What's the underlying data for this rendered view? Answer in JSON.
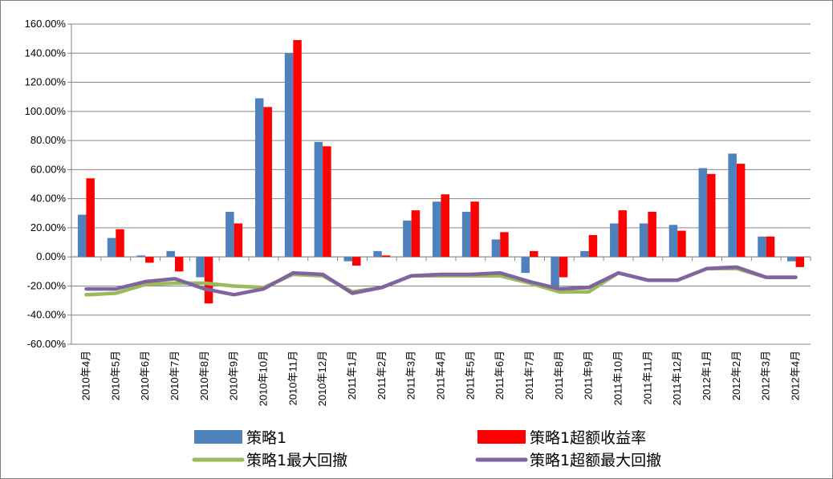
{
  "chart_data": {
    "type": "bar",
    "categories": [
      "2010年4月",
      "2010年5月",
      "2010年6月",
      "2010年7月",
      "2010年8月",
      "2010年9月",
      "2010年10月",
      "2010年11月",
      "2010年12月",
      "2011年1月",
      "2011年2月",
      "2011年3月",
      "2011年4月",
      "2011年5月",
      "2011年6月",
      "2011年7月",
      "2011年8月",
      "2011年9月",
      "2011年10月",
      "2011年11月",
      "2011年12月",
      "2012年1月",
      "2012年2月",
      "2012年3月",
      "2012年4月"
    ],
    "y_ticks": [
      "160.00%",
      "140.00%",
      "120.00%",
      "100.00%",
      "80.00%",
      "60.00%",
      "40.00%",
      "20.00%",
      "0.00%",
      "-20.00%",
      "-40.00%",
      "-60.00%"
    ],
    "ylim": [
      -60,
      160
    ],
    "grid": true,
    "legend_position": "bottom",
    "series": [
      {
        "name": "策略1",
        "kind": "bar",
        "color": "#4f81bd",
        "values": [
          29,
          13,
          1,
          4,
          -14,
          31,
          109,
          140,
          79,
          -3,
          4,
          25,
          38,
          31,
          12,
          -11,
          -21,
          4,
          23,
          23,
          22,
          61,
          71,
          14,
          -3
        ]
      },
      {
        "name": "策略1超额收益率",
        "kind": "bar",
        "color": "#ff0000",
        "values": [
          54,
          19,
          -4,
          -10,
          -32,
          23,
          103,
          149,
          76,
          -6,
          1,
          32,
          43,
          38,
          17,
          4,
          -14,
          15,
          32,
          31,
          18,
          57,
          64,
          14,
          -7
        ]
      },
      {
        "name": "策略1最大回撤",
        "kind": "line",
        "color": "#9bbb59",
        "values": [
          -26,
          -25,
          -19,
          -18,
          -18,
          -20,
          -21,
          -12,
          -13,
          -24,
          -21,
          -13,
          -13,
          -13,
          -13,
          -18,
          -24,
          -24,
          -11,
          -16,
          -16,
          -8,
          -8,
          -14,
          -14
        ]
      },
      {
        "name": "策略1超额最大回撤",
        "kind": "line",
        "color": "#8064a2",
        "values": [
          -22,
          -22,
          -17,
          -15,
          -22,
          -26,
          -22,
          -11,
          -12,
          -25,
          -21,
          -13,
          -12,
          -12,
          -11,
          -17,
          -22,
          -21,
          -11,
          -16,
          -16,
          -8,
          -7,
          -14,
          -14
        ]
      }
    ]
  }
}
